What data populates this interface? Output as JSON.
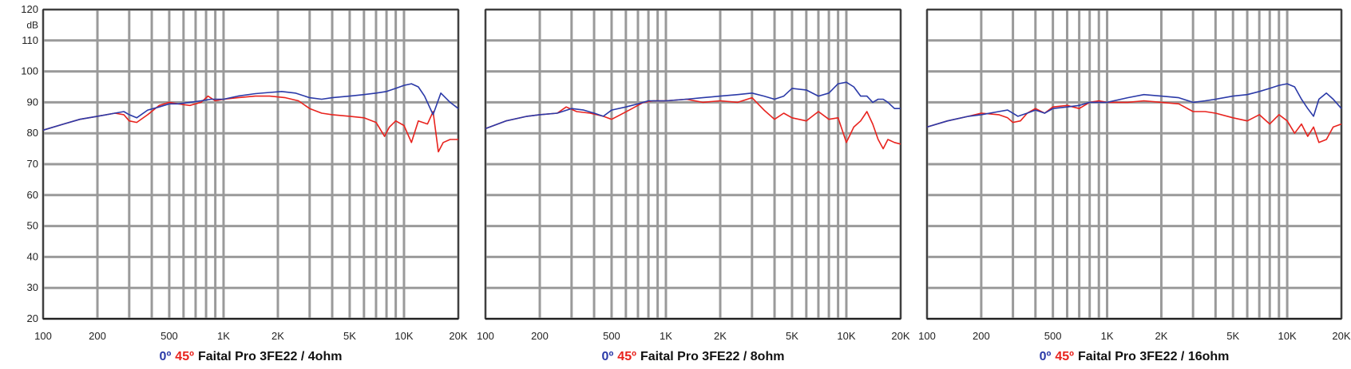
{
  "colors": {
    "series_0": "#2b3aa8",
    "series_45": "#e8231e",
    "grid": "#9a9a9a",
    "frame": "#222222"
  },
  "chart_data": [
    {
      "type": "line",
      "caption": {
        "tag0": "0º",
        "tag45": "45º",
        "title": "Faital Pro 3FE22 / 4ohm"
      },
      "ylabel": "dB",
      "xscale": "log",
      "xlim": [
        100,
        20000
      ],
      "ylim": [
        20,
        120
      ],
      "yticks": [
        20,
        30,
        40,
        50,
        60,
        70,
        80,
        90,
        100,
        110,
        120
      ],
      "xticks": [
        100,
        200,
        500,
        1000,
        2000,
        5000,
        10000,
        20000
      ],
      "xticklabels": [
        "100",
        "200",
        "500",
        "1K",
        "2K",
        "5K",
        "10K",
        "20K"
      ],
      "grid": true,
      "series": [
        {
          "name": "0º",
          "color": "#2b3aa8",
          "x": [
            100,
            130,
            160,
            200,
            250,
            280,
            300,
            330,
            380,
            440,
            500,
            560,
            650,
            750,
            850,
            1000,
            1200,
            1500,
            1800,
            2100,
            2500,
            3000,
            3500,
            4000,
            5000,
            6000,
            7000,
            8000,
            9000,
            10000,
            11000,
            12000,
            13000,
            14500,
            16000,
            18000,
            20000
          ],
          "y": [
            81,
            83,
            84.5,
            85.5,
            86.5,
            87,
            86,
            85,
            87.5,
            88.5,
            89.5,
            89.5,
            90,
            90.5,
            91,
            91,
            92,
            92.8,
            93.2,
            93.5,
            93,
            91.5,
            91,
            91.5,
            92,
            92.5,
            93,
            93.5,
            94.5,
            95.5,
            96,
            95,
            92,
            86,
            93,
            90,
            88
          ]
        },
        {
          "name": "45º",
          "color": "#e8231e",
          "x": [
            100,
            130,
            160,
            200,
            250,
            280,
            300,
            330,
            380,
            440,
            500,
            560,
            650,
            750,
            820,
            900,
            1000,
            1200,
            1500,
            1800,
            2200,
            2600,
            3000,
            3500,
            4000,
            5000,
            6000,
            7000,
            7800,
            8300,
            9000,
            10000,
            11000,
            12000,
            13500,
            14500,
            15500,
            16500,
            18000,
            20000
          ],
          "y": [
            81,
            83,
            84.5,
            85.5,
            86.5,
            86,
            84,
            83.5,
            86,
            89,
            90,
            89.5,
            89,
            90,
            92,
            90.5,
            91,
            91.5,
            92,
            92,
            91.5,
            90.5,
            88,
            86.5,
            86,
            85.5,
            85,
            83.5,
            79,
            82,
            84,
            82.5,
            77,
            84,
            83,
            87,
            74,
            77,
            78,
            78
          ]
        }
      ]
    },
    {
      "type": "line",
      "caption": {
        "tag0": "0º",
        "tag45": "45º",
        "title": "Faital Pro 3FE22 / 8ohm"
      },
      "xscale": "log",
      "xlim": [
        100,
        20000
      ],
      "ylim": [
        20,
        120
      ],
      "xticks": [
        100,
        200,
        500,
        1000,
        2000,
        5000,
        10000,
        20000
      ],
      "xticklabels": [
        "100",
        "200",
        "500",
        "1K",
        "2K",
        "5K",
        "10K",
        "20K"
      ],
      "grid": true,
      "series": [
        {
          "name": "0º",
          "color": "#2b3aa8",
          "x": [
            100,
            130,
            170,
            200,
            250,
            300,
            350,
            400,
            450,
            500,
            600,
            700,
            800,
            1000,
            1300,
            1600,
            2000,
            2500,
            3000,
            3500,
            4000,
            4500,
            5000,
            6000,
            7000,
            8000,
            9000,
            10000,
            11000,
            12000,
            13000,
            14000,
            15000,
            16000,
            17000,
            18500,
            20000
          ],
          "y": [
            81.5,
            84,
            85.5,
            86,
            86.5,
            88,
            87.5,
            86.5,
            85.5,
            87.5,
            88.5,
            89.5,
            90.5,
            90.5,
            91,
            91.5,
            92,
            92.5,
            93,
            92,
            91,
            92,
            94.5,
            94,
            92,
            93,
            96,
            96.5,
            95,
            92,
            92,
            90,
            91,
            91,
            90,
            88,
            88
          ]
        },
        {
          "name": "45º",
          "color": "#e8231e",
          "x": [
            100,
            130,
            170,
            200,
            250,
            280,
            320,
            380,
            450,
            500,
            560,
            650,
            750,
            850,
            1000,
            1300,
            1600,
            2000,
            2500,
            3000,
            3500,
            4000,
            4500,
            5000,
            6000,
            7000,
            8000,
            9000,
            10000,
            11000,
            12000,
            13000,
            14000,
            15000,
            16000,
            17000,
            18500,
            20000
          ],
          "y": [
            81.5,
            84,
            85.5,
            86,
            86.5,
            88.5,
            87,
            86.5,
            85.5,
            84.5,
            86,
            88,
            90,
            90.5,
            90.5,
            91,
            90,
            90.5,
            90,
            91.5,
            87.5,
            84.5,
            86.5,
            85,
            84,
            87,
            84.5,
            85,
            77,
            82,
            84,
            87,
            83,
            78,
            75,
            78,
            77,
            76.5
          ]
        }
      ]
    },
    {
      "type": "line",
      "caption": {
        "tag0": "0º",
        "tag45": "45º",
        "title": "Faital Pro 3FE22 / 16ohm"
      },
      "xscale": "log",
      "xlim": [
        100,
        20000
      ],
      "ylim": [
        20,
        120
      ],
      "xticks": [
        100,
        200,
        500,
        1000,
        2000,
        5000,
        10000,
        20000
      ],
      "xticklabels": [
        "100",
        "200",
        "500",
        "1K",
        "2K",
        "5K",
        "10K",
        "20K"
      ],
      "grid": true,
      "series": [
        {
          "name": "0º",
          "color": "#2b3aa8",
          "x": [
            100,
            130,
            170,
            200,
            250,
            280,
            320,
            360,
            400,
            450,
            500,
            600,
            700,
            800,
            1000,
            1300,
            1600,
            2000,
            2500,
            3000,
            3500,
            4000,
            5000,
            6000,
            7000,
            8000,
            9000,
            10000,
            11000,
            12000,
            13000,
            14000,
            15000,
            16500,
            18000,
            20000
          ],
          "y": [
            82,
            84,
            85.5,
            86,
            87,
            87.5,
            85.5,
            86.5,
            87.5,
            86.5,
            88,
            88.5,
            89,
            90,
            90,
            91.5,
            92.5,
            92,
            91.5,
            90,
            90.5,
            91,
            92,
            92.5,
            93.5,
            94.5,
            95.5,
            96,
            95,
            91,
            88,
            85.5,
            91,
            93,
            91,
            88
          ]
        },
        {
          "name": "45º",
          "color": "#e8231e",
          "x": [
            100,
            130,
            170,
            200,
            250,
            280,
            300,
            330,
            360,
            400,
            450,
            500,
            600,
            700,
            800,
            900,
            1000,
            1300,
            1600,
            2000,
            2500,
            3000,
            3500,
            4000,
            5000,
            6000,
            7000,
            8000,
            9000,
            10000,
            11000,
            12000,
            13000,
            14000,
            15000,
            16500,
            18000,
            20000
          ],
          "y": [
            82,
            84,
            85.5,
            86.5,
            86,
            85,
            83.5,
            84,
            86.5,
            88,
            86.5,
            88.5,
            89,
            88,
            90,
            90.5,
            90,
            90,
            90.5,
            90,
            89.5,
            87,
            87,
            86.5,
            85,
            84,
            86,
            83,
            86,
            84,
            80,
            83,
            79,
            82,
            77,
            78,
            82,
            83
          ]
        }
      ]
    }
  ]
}
